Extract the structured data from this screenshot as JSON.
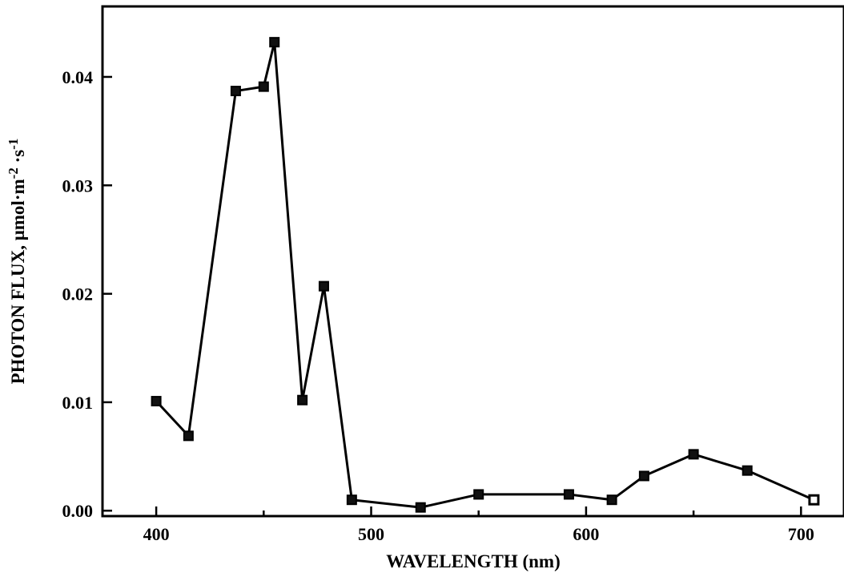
{
  "chart_data": {
    "type": "line",
    "xlabel": "WAVELENGTH (nm)",
    "ylabel_main": "PHOTON FLUX, μmol·m",
    "ylabel_sup1": "-2",
    "ylabel_mid": " ·s",
    "ylabel_sup2": "-1",
    "xlim": [
      375,
      720
    ],
    "ylim": [
      -0.0005,
      0.0465
    ],
    "xticks": [
      400,
      500,
      600,
      700
    ],
    "xtick_labels": [
      "400",
      "500",
      "600",
      "700"
    ],
    "yticks": [
      0.0,
      0.01,
      0.02,
      0.03,
      0.04
    ],
    "ytick_labels": [
      "0.00",
      "0.01",
      "0.02",
      "0.03",
      "0.04"
    ],
    "grid": false,
    "series": [
      {
        "x": [
          400,
          415,
          437,
          450,
          455,
          468,
          478,
          491,
          523,
          550,
          592,
          612,
          627,
          650,
          675,
          706
        ],
        "y": [
          0.0101,
          0.0069,
          0.0387,
          0.0391,
          0.0432,
          0.0102,
          0.0207,
          0.001,
          0.0003,
          0.0015,
          0.0015,
          0.001,
          0.0032,
          0.0052,
          0.0037,
          0.001
        ]
      }
    ]
  }
}
